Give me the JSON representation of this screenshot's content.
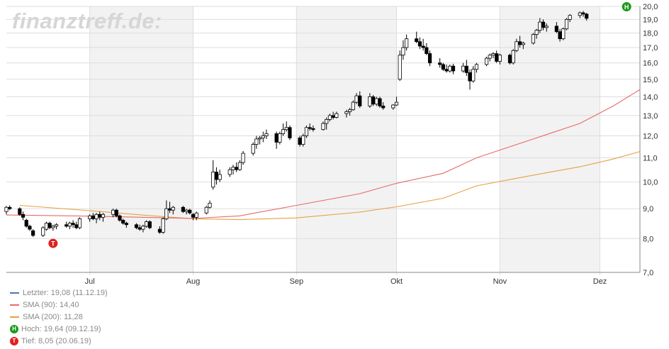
{
  "watermark": "finanztreff.de:",
  "legend": {
    "last": "Letzter: 19,08 (11.12.19)",
    "sma90": "SMA (90): 14,40",
    "sma200": "SMA (200): 11,28",
    "high": "Hoch: 19,64 (09.12.19)",
    "low": "Tief: 8,05 (20.06.19)",
    "high_marker": "H",
    "low_marker": "T"
  },
  "colors": {
    "last": "#4a78b8",
    "sma90": "#e86a6a",
    "sma200": "#e8a040",
    "high": "#1a9a1a",
    "low": "#e02020",
    "band": "#f2f2f2",
    "grid": "#dddddd"
  },
  "chart_data": {
    "type": "candlestick",
    "y_scale": "log",
    "ylim": [
      7.0,
      20.0
    ],
    "y_ticks": [
      "20,0",
      "19,0",
      "18,0",
      "17,0",
      "16,0",
      "15,0",
      "14,0",
      "13,0",
      "12,0",
      "11,0",
      "10,0",
      "9,0",
      "8,0",
      "7,0"
    ],
    "y_tick_values": [
      20,
      19,
      18,
      17,
      16,
      15,
      14,
      13,
      12,
      11,
      10,
      9,
      8,
      7
    ],
    "x_labels": [
      "Jul",
      "Aug",
      "Sep",
      "Okt",
      "Nov",
      "Dez"
    ],
    "x_label_dates": [
      "2019-07-01",
      "2019-08-01",
      "2019-09-01",
      "2019-10-01",
      "2019-11-01",
      "2019-12-01"
    ],
    "x_range": [
      "2019-06-06",
      "2019-12-13"
    ],
    "shaded_months": [
      [
        "2019-07-01",
        "2019-08-01"
      ],
      [
        "2019-09-01",
        "2019-10-01"
      ],
      [
        "2019-11-01",
        "2019-12-01"
      ]
    ],
    "grid": true,
    "markers": [
      {
        "label": "T",
        "date": "2019-06-20",
        "value": 8.05
      },
      {
        "label": "H",
        "date": "2019-12-09",
        "value": 19.64
      }
    ],
    "candles_ohlc_daily": [
      [
        8.9,
        9.1,
        8.8,
        9.05
      ],
      [
        9.05,
        9.12,
        8.95,
        9.0
      ],
      [
        9.0,
        9.05,
        8.75,
        8.8
      ],
      [
        8.8,
        8.9,
        8.6,
        8.7
      ],
      [
        8.6,
        8.65,
        8.35,
        8.4
      ],
      [
        8.4,
        8.45,
        8.25,
        8.3
      ],
      [
        8.25,
        8.3,
        8.05,
        8.1
      ],
      [
        8.1,
        8.4,
        8.05,
        8.35
      ],
      [
        8.3,
        8.55,
        8.25,
        8.5
      ],
      [
        8.5,
        8.55,
        8.3,
        8.35
      ],
      [
        8.35,
        8.45,
        8.25,
        8.4
      ],
      [
        8.4,
        8.5,
        8.3,
        8.45
      ],
      [
        8.45,
        8.55,
        8.35,
        8.4
      ],
      [
        8.4,
        8.55,
        8.3,
        8.5
      ],
      [
        8.5,
        8.6,
        8.35,
        8.45
      ],
      [
        8.45,
        8.55,
        8.3,
        8.35
      ],
      [
        8.35,
        8.7,
        8.3,
        8.65
      ],
      [
        8.65,
        8.8,
        8.55,
        8.75
      ],
      [
        8.75,
        8.85,
        8.6,
        8.65
      ],
      [
        8.65,
        8.85,
        8.5,
        8.8
      ],
      [
        8.8,
        8.9,
        8.6,
        8.7
      ],
      [
        8.7,
        8.85,
        8.55,
        8.8
      ],
      [
        8.8,
        9.0,
        8.7,
        8.95
      ],
      [
        8.95,
        9.0,
        8.7,
        8.75
      ],
      [
        8.75,
        8.8,
        8.55,
        8.6
      ],
      [
        8.6,
        8.65,
        8.45,
        8.5
      ],
      [
        8.5,
        8.55,
        8.35,
        8.45
      ],
      [
        8.45,
        8.5,
        8.3,
        8.35
      ],
      [
        8.35,
        8.45,
        8.25,
        8.3
      ],
      [
        8.3,
        8.45,
        8.2,
        8.4
      ],
      [
        8.4,
        8.6,
        8.35,
        8.55
      ],
      [
        8.55,
        8.6,
        8.3,
        8.35
      ],
      [
        8.3,
        8.4,
        8.15,
        8.2
      ],
      [
        8.2,
        8.7,
        8.15,
        8.65
      ],
      [
        8.65,
        9.3,
        8.6,
        9.0
      ],
      [
        9.0,
        9.25,
        8.85,
        8.95
      ],
      [
        8.95,
        9.1,
        8.8,
        9.05
      ],
      [
        9.05,
        9.1,
        8.85,
        8.9
      ],
      [
        8.9,
        9.0,
        8.8,
        8.95
      ],
      [
        8.95,
        9.0,
        8.8,
        8.85
      ],
      [
        8.8,
        8.85,
        8.6,
        8.7
      ],
      [
        8.7,
        8.9,
        8.6,
        8.85
      ],
      [
        8.85,
        9.1,
        8.8,
        9.05
      ],
      [
        9.05,
        9.3,
        9.0,
        9.2
      ],
      [
        9.8,
        10.9,
        9.7,
        10.4
      ],
      [
        10.4,
        10.6,
        9.9,
        10.1
      ],
      [
        10.1,
        10.5,
        10.0,
        10.3
      ],
      [
        10.3,
        10.6,
        10.2,
        10.5
      ],
      [
        10.5,
        10.7,
        10.3,
        10.6
      ],
      [
        10.6,
        10.8,
        10.4,
        10.5
      ],
      [
        10.5,
        10.9,
        10.45,
        10.8
      ],
      [
        10.8,
        11.3,
        10.7,
        11.2
      ],
      [
        11.2,
        11.7,
        11.1,
        11.6
      ],
      [
        11.6,
        12.0,
        11.4,
        11.85
      ],
      [
        11.85,
        12.0,
        11.6,
        11.9
      ],
      [
        11.9,
        12.2,
        11.7,
        12.0
      ],
      [
        12.0,
        12.3,
        11.85,
        12.1
      ],
      [
        12.1,
        12.2,
        11.4,
        11.7
      ],
      [
        11.7,
        12.2,
        11.6,
        12.1
      ],
      [
        12.1,
        12.6,
        12.0,
        12.3
      ],
      [
        12.3,
        12.7,
        12.2,
        12.4
      ],
      [
        12.4,
        12.5,
        11.8,
        11.9
      ],
      [
        11.9,
        12.0,
        11.5,
        11.6
      ],
      [
        11.6,
        12.1,
        11.5,
        12.0
      ],
      [
        12.0,
        12.5,
        11.9,
        12.4
      ],
      [
        12.4,
        12.6,
        12.25,
        12.35
      ],
      [
        12.35,
        12.5,
        12.2,
        12.3
      ],
      [
        12.3,
        12.7,
        12.25,
        12.6
      ],
      [
        12.6,
        12.9,
        12.3,
        12.8
      ],
      [
        12.8,
        13.1,
        12.7,
        13.0
      ],
      [
        13.0,
        13.2,
        12.8,
        12.9
      ],
      [
        12.9,
        13.2,
        12.85,
        13.1
      ],
      [
        13.1,
        13.3,
        12.9,
        13.2
      ],
      [
        13.2,
        13.4,
        13.0,
        13.3
      ],
      [
        13.3,
        13.8,
        13.25,
        13.7
      ],
      [
        13.7,
        14.2,
        13.6,
        14.05
      ],
      [
        14.05,
        14.3,
        13.4,
        13.5
      ],
      [
        13.5,
        14.2,
        13.4,
        14.0
      ],
      [
        14.0,
        14.1,
        13.5,
        13.6
      ],
      [
        13.6,
        14.0,
        13.5,
        13.9
      ],
      [
        13.9,
        14.0,
        13.4,
        13.5
      ],
      [
        13.5,
        13.7,
        13.3,
        13.4
      ],
      [
        13.4,
        13.6,
        13.3,
        13.55
      ],
      [
        13.55,
        14.0,
        13.5,
        13.7
      ],
      [
        15.0,
        16.8,
        14.9,
        16.5
      ],
      [
        16.5,
        17.5,
        16.2,
        17.0
      ],
      [
        17.0,
        17.9,
        16.8,
        17.6
      ],
      [
        17.6,
        18.1,
        17.3,
        17.4
      ],
      [
        17.4,
        17.7,
        16.9,
        17.1
      ],
      [
        17.1,
        17.6,
        16.8,
        17.0
      ],
      [
        17.0,
        17.3,
        16.5,
        16.6
      ],
      [
        16.6,
        16.8,
        15.8,
        16.0
      ],
      [
        16.0,
        16.3,
        15.7,
        15.9
      ],
      [
        15.9,
        16.0,
        15.5,
        15.6
      ],
      [
        15.6,
        15.9,
        15.4,
        15.5
      ],
      [
        15.5,
        15.9,
        15.4,
        15.8
      ],
      [
        15.8,
        15.95,
        15.3,
        15.5
      ],
      [
        15.5,
        16.0,
        15.4,
        15.8
      ],
      [
        15.8,
        16.2,
        15.2,
        15.4
      ],
      [
        15.4,
        15.6,
        14.4,
        14.9
      ],
      [
        14.9,
        15.8,
        14.8,
        15.6
      ],
      [
        15.6,
        16.0,
        15.4,
        15.9
      ],
      [
        15.9,
        16.4,
        15.8,
        16.3
      ],
      [
        16.3,
        16.6,
        16.1,
        16.5
      ],
      [
        16.5,
        16.7,
        16.3,
        16.6
      ],
      [
        16.6,
        16.8,
        16.0,
        16.1
      ],
      [
        16.1,
        16.6,
        15.9,
        16.5
      ],
      [
        16.5,
        16.6,
        15.9,
        16.0
      ],
      [
        16.0,
        16.9,
        15.9,
        16.8
      ],
      [
        16.8,
        17.6,
        16.7,
        17.4
      ],
      [
        17.4,
        17.8,
        17.0,
        17.2
      ],
      [
        17.2,
        17.4,
        16.9,
        17.3
      ],
      [
        17.3,
        18.0,
        17.2,
        17.9
      ],
      [
        17.9,
        18.3,
        17.6,
        18.2
      ],
      [
        18.2,
        19.1,
        18.0,
        18.8
      ],
      [
        18.8,
        19.0,
        18.2,
        18.4
      ],
      [
        18.4,
        18.7,
        18.1,
        18.5
      ],
      [
        18.5,
        18.8,
        18.0,
        18.1
      ],
      [
        18.1,
        18.3,
        17.4,
        17.6
      ],
      [
        17.6,
        18.4,
        17.5,
        18.3
      ],
      [
        18.3,
        19.1,
        18.2,
        19.0
      ],
      [
        19.0,
        19.4,
        18.8,
        19.3
      ],
      [
        19.3,
        19.6,
        19.1,
        19.5
      ],
      [
        19.5,
        19.64,
        19.2,
        19.4
      ],
      [
        19.4,
        19.5,
        18.9,
        19.08
      ]
    ],
    "sma90_points": [
      [
        "2019-06-06",
        8.78
      ],
      [
        "2019-07-01",
        8.74
      ],
      [
        "2019-08-01",
        8.66
      ],
      [
        "2019-08-15",
        8.75
      ],
      [
        "2019-09-01",
        9.12
      ],
      [
        "2019-09-20",
        9.55
      ],
      [
        "2019-10-01",
        9.95
      ],
      [
        "2019-10-15",
        10.35
      ],
      [
        "2019-10-25",
        11.0
      ],
      [
        "2019-11-10",
        11.8
      ],
      [
        "2019-11-25",
        12.6
      ],
      [
        "2019-12-05",
        13.5
      ],
      [
        "2019-12-13",
        14.4
      ]
    ],
    "sma200_points": [
      [
        "2019-06-10",
        9.12
      ],
      [
        "2019-07-01",
        8.93
      ],
      [
        "2019-07-20",
        8.75
      ],
      [
        "2019-08-01",
        8.65
      ],
      [
        "2019-08-15",
        8.62
      ],
      [
        "2019-09-01",
        8.68
      ],
      [
        "2019-09-20",
        8.88
      ],
      [
        "2019-10-01",
        9.07
      ],
      [
        "2019-10-15",
        9.38
      ],
      [
        "2019-10-25",
        9.85
      ],
      [
        "2019-11-10",
        10.25
      ],
      [
        "2019-11-25",
        10.62
      ],
      [
        "2019-12-05",
        10.95
      ],
      [
        "2019-12-13",
        11.28
      ]
    ]
  }
}
